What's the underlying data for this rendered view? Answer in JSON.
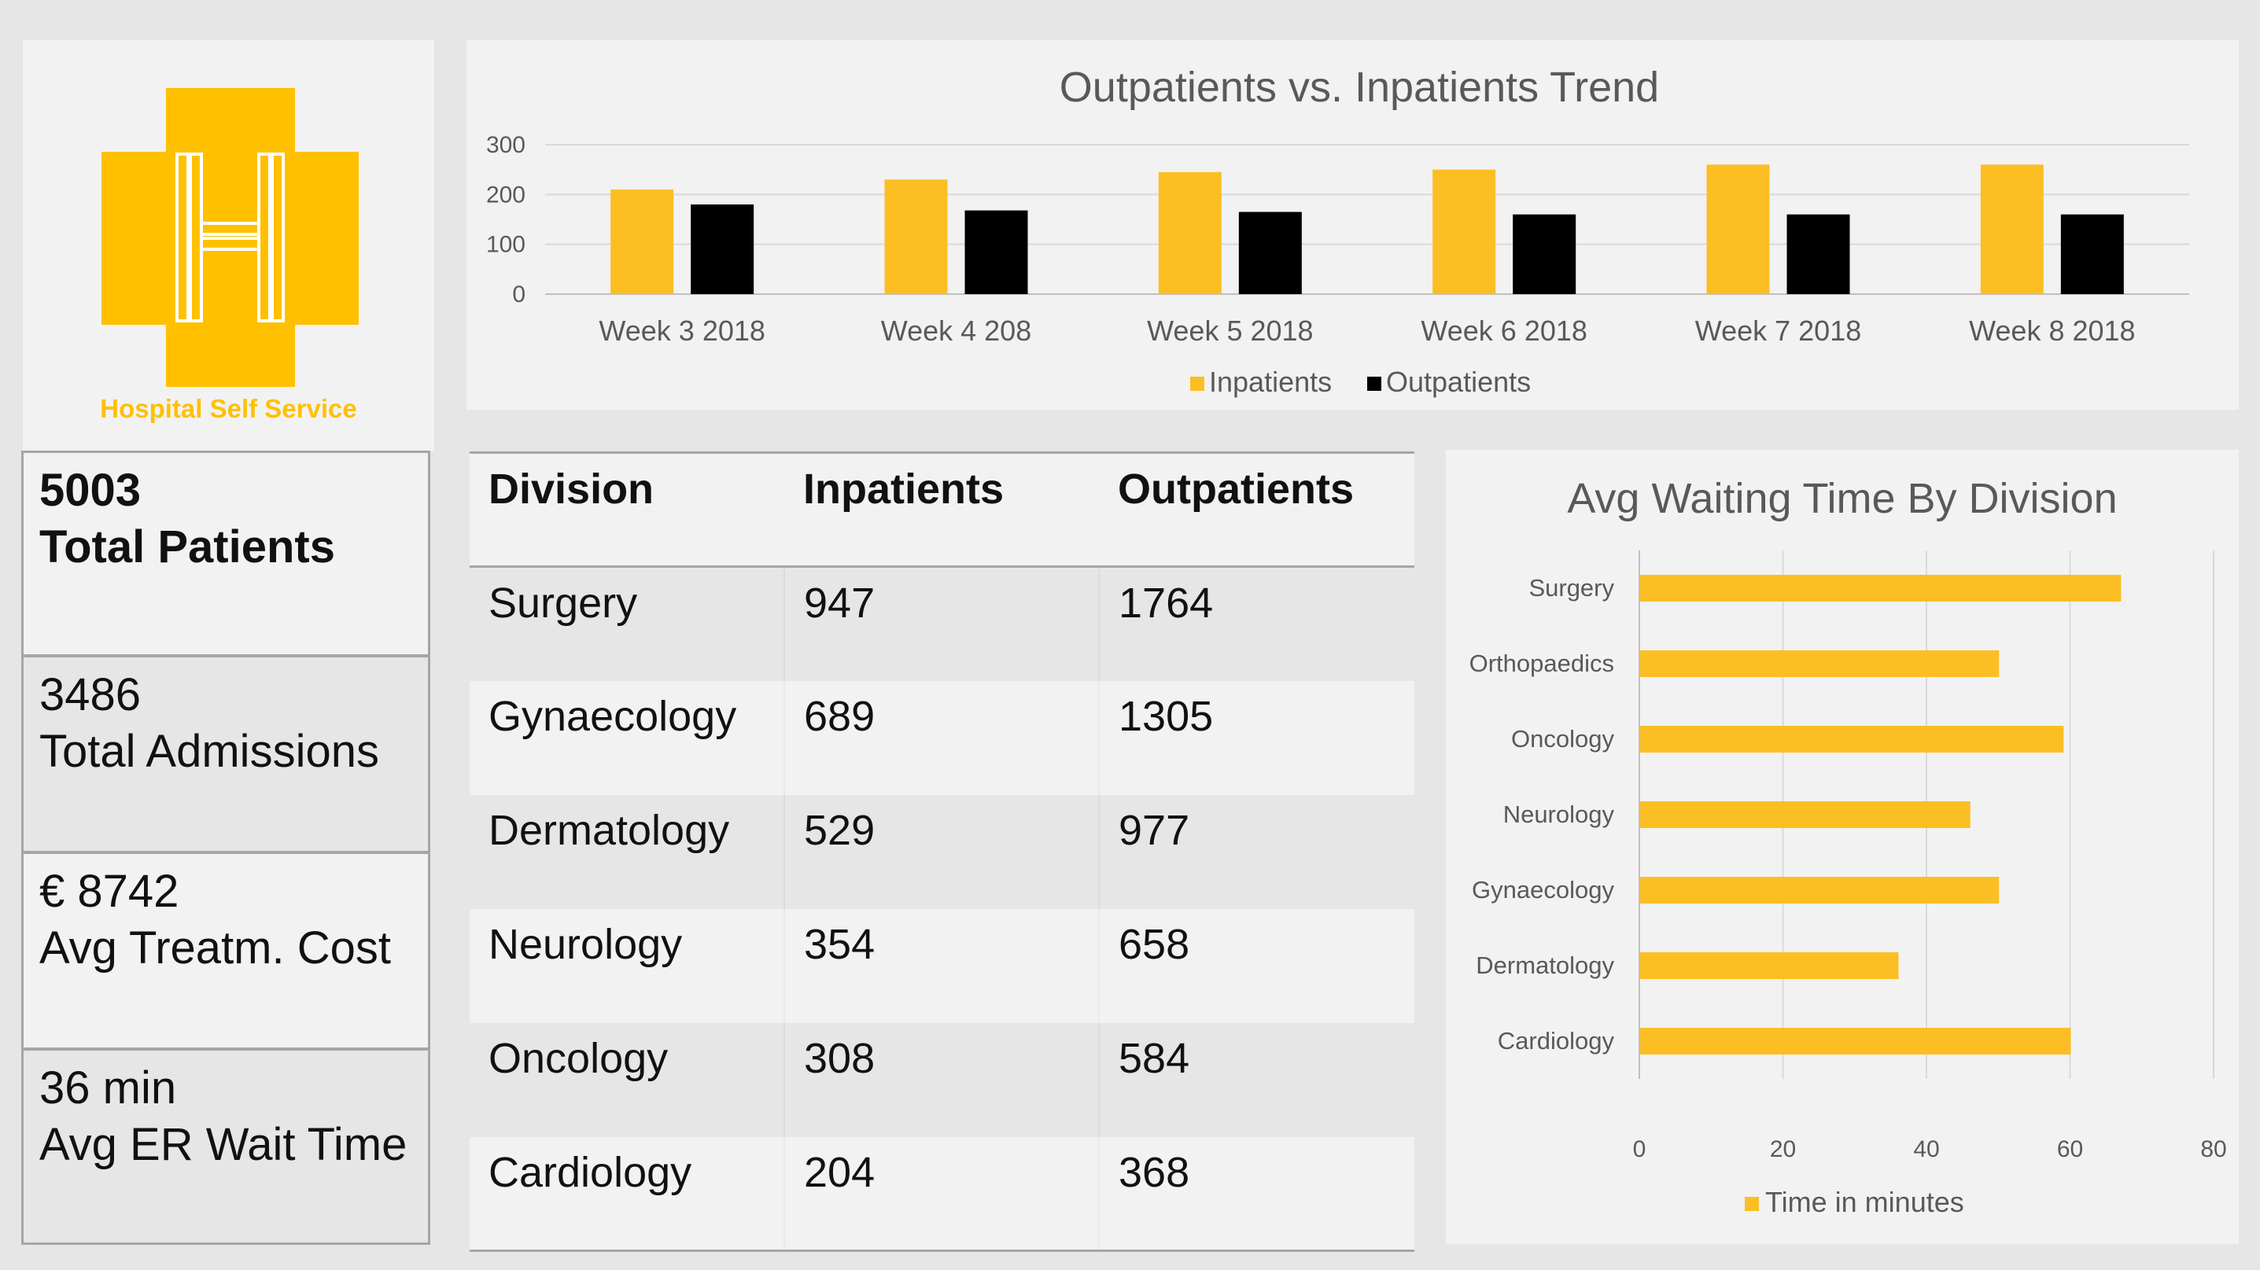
{
  "logo": {
    "caption": "Hospital Self Service",
    "icon": "hospital-cross-logo",
    "color": "#ffc000"
  },
  "kpis": [
    {
      "value": "5003",
      "label": "Total Patients"
    },
    {
      "value": "3486",
      "label": "Total Admissions"
    },
    {
      "value": "€ 8742",
      "label": "Avg Treatm. Cost"
    },
    {
      "value": "36 min",
      "label": "Avg ER Wait Time"
    }
  ],
  "table": {
    "headers": [
      "Division",
      "Inpatients",
      "Outpatients"
    ],
    "rows": [
      [
        "Surgery",
        "947",
        "1764"
      ],
      [
        "Gynaecology",
        "689",
        "1305"
      ],
      [
        "Dermatology",
        "529",
        "977"
      ],
      [
        "Neurology",
        "354",
        "658"
      ],
      [
        "Oncology",
        "308",
        "584"
      ],
      [
        "Cardiology",
        "204",
        "368"
      ]
    ]
  },
  "colors": {
    "inpatients": "#fbbf24",
    "outpatients": "#000000",
    "wait_bar": "#fbbf24"
  },
  "chart_data": [
    {
      "type": "bar",
      "title": "Outpatients vs. Inpatients Trend",
      "categories": [
        "Week 3 2018",
        "Week 4 208",
        "Week 5 2018",
        "Week 6 2018",
        "Week 7 2018",
        "Week 8 2018"
      ],
      "series": [
        {
          "name": "Inpatients",
          "values": [
            210,
            230,
            245,
            250,
            260,
            260
          ]
        },
        {
          "name": "Outpatients",
          "values": [
            180,
            168,
            165,
            160,
            160,
            160
          ]
        }
      ],
      "yticks": [
        "0",
        "100",
        "200",
        "300"
      ],
      "ylim": [
        0,
        300
      ],
      "grid": true,
      "legend": "bottom"
    },
    {
      "type": "bar",
      "orientation": "horizontal",
      "title": "Avg Waiting Time By Division",
      "categories": [
        "Surgery",
        "Orthopaedics",
        "Oncology",
        "Neurology",
        "Gynaecology",
        "Dermatology",
        "Cardiology"
      ],
      "series": [
        {
          "name": "Time in minutes",
          "values": [
            67,
            50,
            59,
            46,
            50,
            36,
            60
          ]
        }
      ],
      "xticks": [
        "0",
        "20",
        "40",
        "60",
        "80"
      ],
      "xlim": [
        0,
        80
      ],
      "grid": true,
      "legend": "bottom"
    }
  ]
}
